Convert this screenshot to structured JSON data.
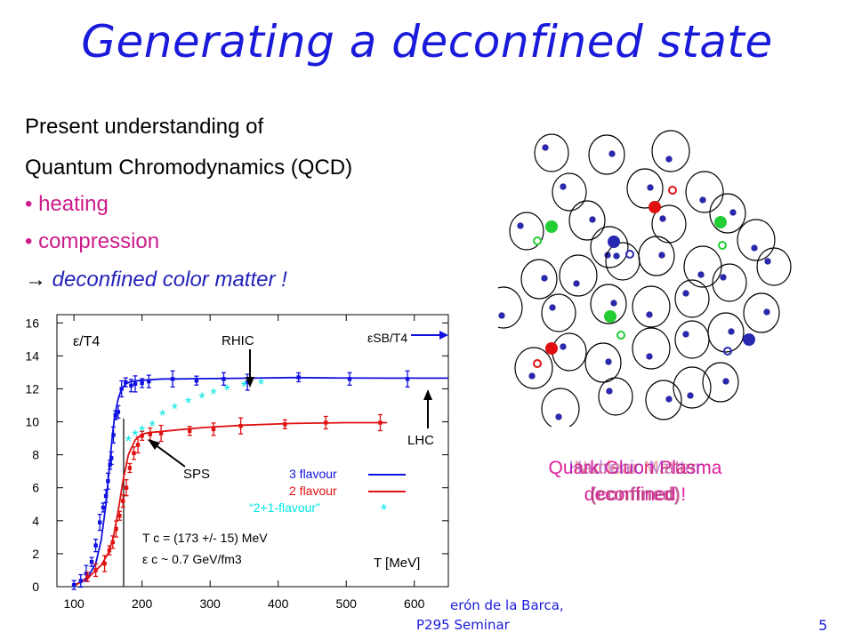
{
  "slide": {
    "title": "Generating a deconfined state",
    "intro_line1": "Present understanding of",
    "intro_line2": "Quantum Chromodynamics (QCD)",
    "bullet1": "• heating",
    "bullet2": "• compression",
    "arrow_glyph": "→",
    "conclusion": "deconfined color matter !",
    "overlay_line1": "Quark Gluon Plasma",
    "overlay_line2": "deconfined !",
    "overlay_line3": "Hadronic Matter",
    "overlay_line4": "(confined)",
    "overlay_line5": "Nuclear Matter",
    "overlay_line6": "(confined)",
    "footer_author": "erón de la Barca,",
    "footer_seminar": "P295 Seminar",
    "page_number": "5"
  },
  "colors": {
    "title": "#1a1adb",
    "pink": "#cc1a8a",
    "blue_series": "#1010e0",
    "red_series": "#e01010",
    "cyan_series": "#00e5e5",
    "quark_red": "#e01010",
    "quark_green": "#22cc33",
    "quark_blue": "#2828b0"
  },
  "chart_data": {
    "type": "line",
    "title": "",
    "ylabel": "ε/T4",
    "xlabel": "T [MeV]",
    "xlim": [
      75,
      650
    ],
    "ylim": [
      0,
      16.5
    ],
    "xticks": [
      100,
      200,
      300,
      400,
      500,
      600
    ],
    "yticks": [
      0,
      2,
      4,
      6,
      8,
      10,
      12,
      14,
      16
    ],
    "grid": false,
    "legend_position": "inside-right",
    "series": [
      {
        "name": "3 flavour",
        "color": "#1010e0",
        "x": [
          100,
          112,
          122,
          132,
          140,
          147,
          152,
          156,
          160,
          165,
          170,
          176,
          184,
          195,
          210,
          230,
          250,
          280,
          320,
          360,
          420,
          480,
          560,
          650
        ],
        "y": [
          0.1,
          0.3,
          0.7,
          1.4,
          2.8,
          5.0,
          7.2,
          9.0,
          10.4,
          11.4,
          12.0,
          12.3,
          12.45,
          12.5,
          12.55,
          12.6,
          12.6,
          12.62,
          12.63,
          12.65,
          12.68,
          12.66,
          12.65,
          12.65
        ],
        "points_x": [
          100,
          110,
          118,
          126,
          132,
          138,
          143,
          147,
          150,
          153,
          155,
          158,
          161,
          165,
          170,
          176,
          184,
          190,
          200,
          210,
          245,
          280,
          320,
          355,
          430,
          505,
          590
        ],
        "points_y": [
          0.1,
          0.35,
          0.8,
          1.5,
          2.5,
          3.9,
          4.8,
          5.5,
          6.4,
          7.4,
          7.8,
          9.2,
          10.4,
          10.6,
          12.0,
          12.4,
          12.2,
          12.3,
          12.35,
          12.45,
          12.6,
          12.5,
          12.6,
          12.4,
          12.7,
          12.6,
          12.6
        ]
      },
      {
        "name": "2 flavour",
        "color": "#e01010",
        "x": [
          100,
          120,
          140,
          150,
          158,
          165,
          172,
          180,
          190,
          200,
          210,
          225,
          250,
          290,
          350,
          420,
          500,
          560
        ],
        "y": [
          0.05,
          0.5,
          1.3,
          2.0,
          3.0,
          4.6,
          6.4,
          8.0,
          8.9,
          9.25,
          9.35,
          9.4,
          9.5,
          9.65,
          9.8,
          9.9,
          9.95,
          9.95
        ],
        "points_x": [
          120,
          132,
          145,
          152,
          157,
          162,
          167,
          172,
          177,
          182,
          188,
          194,
          200,
          212,
          228,
          270,
          305,
          345,
          410,
          470,
          550
        ],
        "points_y": [
          0.6,
          1.0,
          1.4,
          2.2,
          2.7,
          3.5,
          4.3,
          5.2,
          6.0,
          7.2,
          8.1,
          8.6,
          9.15,
          9.25,
          9.3,
          9.45,
          9.55,
          9.75,
          9.85,
          9.95,
          9.95
        ]
      },
      {
        "name": "“2+1-flavour”",
        "color": "#00e5e5",
        "points_x": [
          180,
          190,
          200,
          215,
          230,
          248,
          268,
          288,
          305,
          325,
          350,
          375
        ],
        "points_y": [
          8.8,
          9.15,
          9.4,
          9.7,
          10.35,
          10.75,
          11.1,
          11.4,
          11.65,
          11.9,
          12.1,
          12.25
        ]
      }
    ],
    "annotations": {
      "rhic": "RHIC",
      "sps": "SPS",
      "lhc": "LHC",
      "esb": "εSB/T4",
      "tc_line": "T c = (173 +/- 15) MeV",
      "ec_line": "ε c ~ 0.7 GeV/fm3",
      "tc_value": 173
    }
  }
}
